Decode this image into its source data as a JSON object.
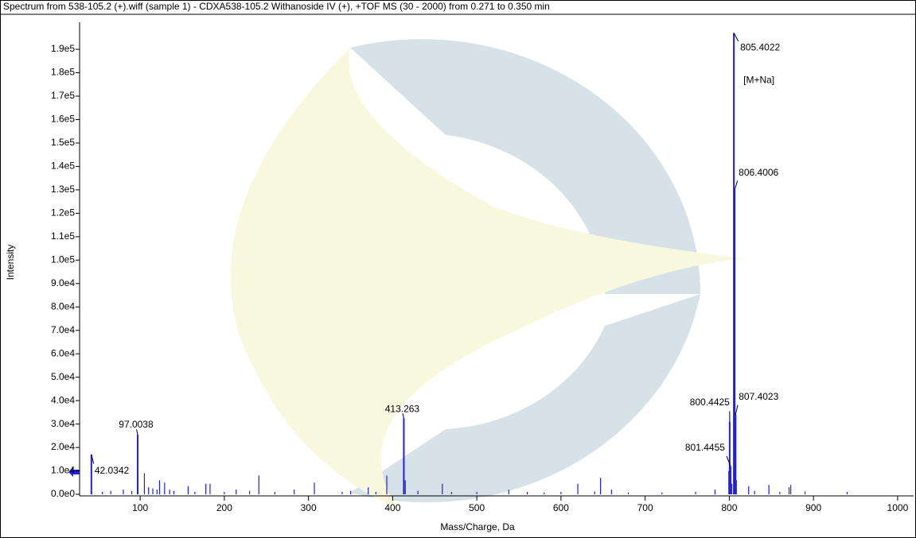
{
  "chart_data": {
    "type": "spectrum",
    "title": "Spectrum from 538-105.2 (+).wiff (sample 1) - CDXA538-105.2 Withanoside IV (+), +TOF MS (30 - 2000) from 0.271 to 0.350 min",
    "x_label": "Mass/Charge, Da",
    "y_label": "Intensity",
    "annotation": "[M+Na]",
    "color": "#1f1fe6",
    "xlim": [
      28,
      1019
    ],
    "ylim": [
      0,
      200000
    ],
    "xticks": [
      100,
      200,
      300,
      400,
      500,
      600,
      700,
      800,
      900,
      1000
    ],
    "yticks": [
      {
        "value": 0,
        "label": "0.0e0"
      },
      {
        "value": 10000,
        "label": "1.0e4"
      },
      {
        "value": 20000,
        "label": "2.0e4"
      },
      {
        "value": 30000,
        "label": "3.0e4"
      },
      {
        "value": 40000,
        "label": "4.0e4"
      },
      {
        "value": 50000,
        "label": "5.0e4"
      },
      {
        "value": 60000,
        "label": "6.0e4"
      },
      {
        "value": 70000,
        "label": "7.0e4"
      },
      {
        "value": 80000,
        "label": "8.0e4"
      },
      {
        "value": 90000,
        "label": "9.0e4"
      },
      {
        "value": 100000,
        "label": "1.0e5"
      },
      {
        "value": 110000,
        "label": "1.1e5"
      },
      {
        "value": 120000,
        "label": "1.2e5"
      },
      {
        "value": 130000,
        "label": "1.3e5"
      },
      {
        "value": 140000,
        "label": "1.4e5"
      },
      {
        "value": 150000,
        "label": "1.5e5"
      },
      {
        "value": 160000,
        "label": "1.6e5"
      },
      {
        "value": 170000,
        "label": "1.7e5"
      },
      {
        "value": 180000,
        "label": "1.8e5"
      },
      {
        "value": 190000,
        "label": "1.9e5"
      }
    ],
    "series": [
      {
        "x": [
          42.0342,
          97.0038,
          413.263,
          800.4425,
          801.4455,
          805.4022,
          806.4006,
          807.4023
        ],
        "values": [
          17000,
          25500,
          32500,
          31000,
          12000,
          197000,
          130000,
          34000
        ]
      },
      {
        "x": [
          55,
          65,
          80,
          90,
          105,
          110,
          115,
          120,
          123,
          129,
          135,
          140,
          157,
          165,
          178,
          183,
          200,
          214,
          230,
          241,
          260,
          283,
          307,
          340,
          350,
          371,
          380,
          393,
          415,
          430,
          459,
          470,
          500,
          538,
          560,
          580,
          600,
          620,
          640,
          647,
          660,
          680,
          720,
          760,
          783,
          799.4,
          803,
          808.4,
          823,
          830,
          847,
          860,
          871,
          873,
          890,
          940
        ],
        "values": [
          1000,
          1500,
          2000,
          1500,
          9000,
          3000,
          2500,
          2000,
          6000,
          5000,
          2000,
          1500,
          3500,
          1000,
          4500,
          4500,
          1000,
          2000,
          1500,
          8000,
          1000,
          2000,
          5000,
          1000,
          1500,
          3000,
          1000,
          8000,
          6000,
          1500,
          4500,
          1000,
          1000,
          2000,
          1000,
          800,
          1000,
          4500,
          1200,
          7000,
          2000,
          800,
          800,
          1000,
          2000,
          10000,
          4500,
          6000,
          3500,
          1500,
          4000,
          1000,
          3000,
          4000,
          1200,
          1000
        ]
      }
    ]
  }
}
